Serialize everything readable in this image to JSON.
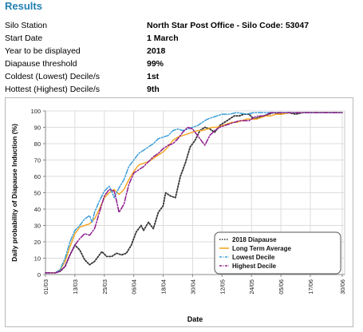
{
  "results_title": "Results",
  "info": [
    {
      "label": "Silo Station",
      "value": "North Star Post Office - Silo Code: 53047"
    },
    {
      "label": "Start Date",
      "value": "1 March"
    },
    {
      "label": "Year to be displayed",
      "value": "2018"
    },
    {
      "label": "Diapause threshold",
      "value": "99%"
    },
    {
      "label": "Coldest (Lowest) Decile/s",
      "value": "1st"
    },
    {
      "label": "Hottest (Highest) Decile/s",
      "value": "9th"
    }
  ],
  "chart_data": {
    "type": "line",
    "title": "",
    "xlabel": "Date",
    "ylabel": "Daily probability of Diapause Induction (%)",
    "ylim": [
      0,
      100
    ],
    "yticks": [
      0,
      10,
      20,
      30,
      40,
      50,
      60,
      70,
      80,
      90,
      100
    ],
    "xlim": [
      0,
      122
    ],
    "xticks": [
      {
        "day": 0,
        "label": "01/03"
      },
      {
        "day": 12,
        "label": "13/03"
      },
      {
        "day": 24,
        "label": "25/03"
      },
      {
        "day": 36,
        "label": "06/04"
      },
      {
        "day": 48,
        "label": "18/04"
      },
      {
        "day": 60,
        "label": "30/04"
      },
      {
        "day": 72,
        "label": "12/05"
      },
      {
        "day": 84,
        "label": "24/05"
      },
      {
        "day": 96,
        "label": "05/06"
      },
      {
        "day": 108,
        "label": "17/06"
      },
      {
        "day": 121,
        "label": "30/06"
      }
    ],
    "grid": true,
    "legend_position": "bottom-right",
    "series": [
      {
        "name": "2018 Diapause",
        "color": "#333333",
        "dash": "dotted",
        "points": [
          [
            0,
            1
          ],
          [
            4,
            1
          ],
          [
            6,
            2
          ],
          [
            8,
            5
          ],
          [
            10,
            12
          ],
          [
            12,
            18
          ],
          [
            14,
            15
          ],
          [
            16,
            9
          ],
          [
            18,
            6
          ],
          [
            20,
            8
          ],
          [
            22,
            12
          ],
          [
            23,
            14
          ],
          [
            25,
            11
          ],
          [
            27,
            11
          ],
          [
            29,
            13
          ],
          [
            31,
            12
          ],
          [
            33,
            13
          ],
          [
            35,
            18
          ],
          [
            37,
            26
          ],
          [
            39,
            30
          ],
          [
            40,
            27
          ],
          [
            42,
            32
          ],
          [
            44,
            28
          ],
          [
            46,
            38
          ],
          [
            48,
            42
          ],
          [
            49,
            50
          ],
          [
            51,
            48
          ],
          [
            53,
            47
          ],
          [
            55,
            60
          ],
          [
            57,
            68
          ],
          [
            59,
            78
          ],
          [
            61,
            82
          ],
          [
            63,
            88
          ],
          [
            65,
            90
          ],
          [
            67,
            89
          ],
          [
            69,
            87
          ],
          [
            71,
            91
          ],
          [
            73,
            93
          ],
          [
            75,
            95
          ],
          [
            77,
            97
          ],
          [
            79,
            97
          ],
          [
            81,
            98
          ],
          [
            83,
            98
          ],
          [
            85,
            95
          ],
          [
            87,
            96
          ],
          [
            89,
            97
          ],
          [
            91,
            98
          ],
          [
            93,
            99
          ],
          [
            96,
            98
          ],
          [
            99,
            99
          ],
          [
            102,
            98
          ],
          [
            105,
            99
          ],
          [
            108,
            99
          ],
          [
            112,
            99
          ],
          [
            116,
            99
          ],
          [
            121,
            99
          ]
        ]
      },
      {
        "name": "Long Term Average",
        "color": "#f5a623",
        "dash": "solid",
        "points": [
          [
            0,
            1
          ],
          [
            4,
            1
          ],
          [
            6,
            3
          ],
          [
            8,
            8
          ],
          [
            10,
            17
          ],
          [
            12,
            25
          ],
          [
            14,
            29
          ],
          [
            16,
            30
          ],
          [
            18,
            31
          ],
          [
            20,
            34
          ],
          [
            22,
            40
          ],
          [
            24,
            47
          ],
          [
            26,
            50
          ],
          [
            28,
            52
          ],
          [
            30,
            49
          ],
          [
            32,
            52
          ],
          [
            34,
            58
          ],
          [
            36,
            63
          ],
          [
            38,
            67
          ],
          [
            40,
            68
          ],
          [
            42,
            69
          ],
          [
            44,
            71
          ],
          [
            46,
            73
          ],
          [
            48,
            75
          ],
          [
            50,
            78
          ],
          [
            52,
            82
          ],
          [
            54,
            84
          ],
          [
            56,
            85
          ],
          [
            58,
            86
          ],
          [
            60,
            87
          ],
          [
            62,
            88
          ],
          [
            64,
            88
          ],
          [
            66,
            89
          ],
          [
            68,
            90
          ],
          [
            70,
            90
          ],
          [
            72,
            91
          ],
          [
            74,
            92
          ],
          [
            76,
            93
          ],
          [
            78,
            93
          ],
          [
            80,
            94
          ],
          [
            82,
            95
          ],
          [
            84,
            95
          ],
          [
            86,
            95
          ],
          [
            88,
            96
          ],
          [
            90,
            97
          ],
          [
            92,
            97
          ],
          [
            94,
            98
          ],
          [
            96,
            98
          ],
          [
            100,
            99
          ],
          [
            105,
            99
          ],
          [
            110,
            99
          ],
          [
            115,
            99
          ],
          [
            121,
            99
          ]
        ]
      },
      {
        "name": "Lowest Decile",
        "color": "#3a9fd9",
        "dash": "dashdot",
        "points": [
          [
            0,
            1
          ],
          [
            4,
            1
          ],
          [
            6,
            3
          ],
          [
            8,
            10
          ],
          [
            10,
            20
          ],
          [
            12,
            27
          ],
          [
            14,
            30
          ],
          [
            16,
            34
          ],
          [
            18,
            36
          ],
          [
            19,
            32
          ],
          [
            20,
            38
          ],
          [
            22,
            45
          ],
          [
            24,
            51
          ],
          [
            26,
            54
          ],
          [
            27,
            51
          ],
          [
            28,
            47
          ],
          [
            30,
            53
          ],
          [
            32,
            58
          ],
          [
            34,
            66
          ],
          [
            36,
            70
          ],
          [
            38,
            74
          ],
          [
            40,
            76
          ],
          [
            42,
            78
          ],
          [
            44,
            80
          ],
          [
            46,
            83
          ],
          [
            48,
            84
          ],
          [
            50,
            85
          ],
          [
            52,
            88
          ],
          [
            54,
            89
          ],
          [
            56,
            88
          ],
          [
            58,
            89
          ],
          [
            60,
            90
          ],
          [
            62,
            91
          ],
          [
            64,
            93
          ],
          [
            66,
            95
          ],
          [
            68,
            96
          ],
          [
            70,
            97
          ],
          [
            72,
            98
          ],
          [
            75,
            98
          ],
          [
            78,
            99
          ],
          [
            82,
            98
          ],
          [
            85,
            99
          ],
          [
            88,
            99
          ],
          [
            92,
            99
          ],
          [
            96,
            99
          ],
          [
            100,
            99
          ],
          [
            105,
            99
          ],
          [
            110,
            99
          ],
          [
            116,
            99
          ],
          [
            121,
            99
          ]
        ]
      },
      {
        "name": "Highest Decile",
        "color": "#8e1b8e",
        "dash": "dashdot",
        "points": [
          [
            0,
            1
          ],
          [
            4,
            1
          ],
          [
            6,
            2
          ],
          [
            8,
            5
          ],
          [
            10,
            12
          ],
          [
            12,
            18
          ],
          [
            14,
            22
          ],
          [
            16,
            25
          ],
          [
            18,
            24
          ],
          [
            20,
            28
          ],
          [
            22,
            38
          ],
          [
            24,
            48
          ],
          [
            26,
            52
          ],
          [
            28,
            51
          ],
          [
            29,
            45
          ],
          [
            30,
            38
          ],
          [
            32,
            43
          ],
          [
            34,
            55
          ],
          [
            36,
            62
          ],
          [
            38,
            64
          ],
          [
            40,
            66
          ],
          [
            42,
            69
          ],
          [
            44,
            72
          ],
          [
            46,
            74
          ],
          [
            48,
            77
          ],
          [
            50,
            79
          ],
          [
            52,
            80
          ],
          [
            54,
            83
          ],
          [
            56,
            87
          ],
          [
            58,
            90
          ],
          [
            60,
            89
          ],
          [
            62,
            85
          ],
          [
            64,
            81
          ],
          [
            65,
            79
          ],
          [
            67,
            85
          ],
          [
            69,
            88
          ],
          [
            71,
            90
          ],
          [
            73,
            91
          ],
          [
            75,
            92
          ],
          [
            77,
            93
          ],
          [
            79,
            94
          ],
          [
            81,
            94
          ],
          [
            83,
            94
          ],
          [
            85,
            96
          ],
          [
            87,
            97
          ],
          [
            89,
            97
          ],
          [
            92,
            99
          ],
          [
            96,
            99
          ],
          [
            100,
            99
          ],
          [
            105,
            99
          ],
          [
            110,
            99
          ],
          [
            116,
            99
          ],
          [
            121,
            99
          ]
        ]
      }
    ]
  }
}
